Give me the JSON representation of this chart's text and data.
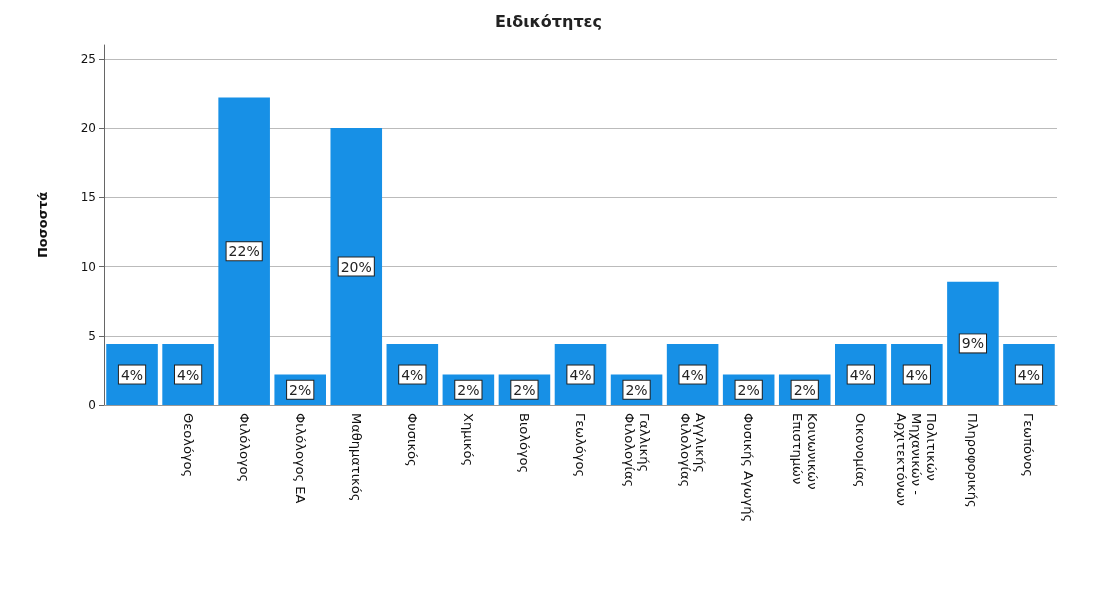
{
  "chart_data": {
    "type": "bar",
    "title": "Ειδικότητες",
    "ylabel": "Ποσοστά",
    "categories": [
      null,
      "Θεολόγος",
      "Φιλόλογος",
      "Φιλόλογος ΕΑ",
      "Μαθηματικός",
      "Φυσικός",
      "Χημικός",
      "Βιολόγος",
      "Γεωλόγος",
      "Γαλλικής Φιλολογίας",
      "Αγγλικής Φιλολογίας",
      "Φυσικής Αγωγής",
      "Κοινωνικών Επιστημών",
      "Οικονομίας",
      "Πολιτικών Μηχανικών - Αρχιτεκτόνων",
      "Πληροφορικής",
      "Γεωπόνος"
    ],
    "values": [
      4.4,
      4.4,
      22.2,
      2.2,
      20.0,
      4.4,
      2.2,
      2.2,
      4.4,
      2.2,
      4.4,
      2.2,
      2.2,
      4.4,
      4.4,
      8.9,
      4.4
    ],
    "value_labels": [
      "4%",
      "4%",
      "22%",
      "2%",
      "20%",
      "4%",
      "2%",
      "2%",
      "4%",
      "2%",
      "4%",
      "2%",
      "2%",
      "4%",
      "4%",
      "9%",
      "4%"
    ],
    "color": "#1790e6",
    "ylim": [
      0,
      26
    ],
    "yticks": [
      0,
      5,
      10,
      15,
      20,
      25
    ],
    "grid": "y"
  }
}
